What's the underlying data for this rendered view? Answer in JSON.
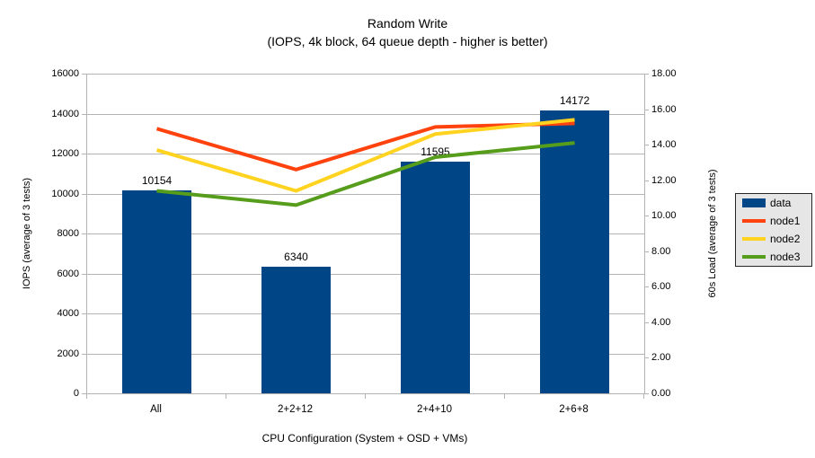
{
  "chart_data": {
    "type": "bar+line dual-axis",
    "title": "Random Write",
    "subtitle": "(IOPS, 4k block, 64 queue depth - higher is better)",
    "categories": [
      "All",
      "2+2+12",
      "2+4+10",
      "2+6+8"
    ],
    "bar_series": {
      "name": "data",
      "color": "#004586",
      "axis": "left",
      "values": [
        10154,
        6340,
        11595,
        14172
      ],
      "data_labels": [
        "10154",
        "6340",
        "11595",
        "14172"
      ]
    },
    "line_series": [
      {
        "name": "node1",
        "color": "#ff420e",
        "axis": "right",
        "values": [
          14.9,
          12.6,
          15.0,
          15.2
        ]
      },
      {
        "name": "node2",
        "color": "#ffd320",
        "axis": "right",
        "values": [
          13.7,
          11.4,
          14.6,
          15.4
        ]
      },
      {
        "name": "node3",
        "color": "#579d1c",
        "axis": "right",
        "values": [
          11.4,
          10.6,
          13.3,
          14.1
        ]
      }
    ],
    "left_axis": {
      "label": "IOPS (average of 3 tests)",
      "min": 0,
      "max": 16000,
      "step": 2000
    },
    "right_axis": {
      "label": "60s Load (average of 3 tests)",
      "min": 0,
      "max": 18,
      "step": 2,
      "decimals": 2
    },
    "x_axis": {
      "label": "CPU Configuration (System + OSD + VMs)"
    },
    "legend": {
      "position": "right",
      "entries": [
        {
          "label": "data",
          "swatch": "box",
          "color": "#004586"
        },
        {
          "label": "node1",
          "swatch": "line",
          "color": "#ff420e"
        },
        {
          "label": "node2",
          "swatch": "line",
          "color": "#ffd320"
        },
        {
          "label": "node3",
          "swatch": "line",
          "color": "#579d1c"
        }
      ]
    },
    "grid": true,
    "colors": {
      "background": "#ffffff",
      "grid": "#b3b3b3",
      "axis": "#b3b3b3",
      "text": "#000000",
      "legend_bg": "#e6e6e6",
      "legend_border": "#262626"
    }
  }
}
